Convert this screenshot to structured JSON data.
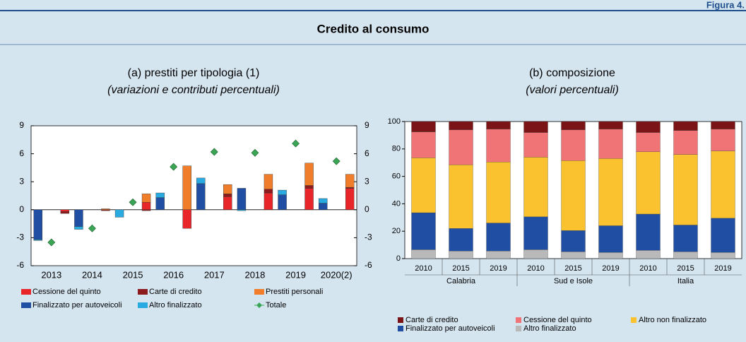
{
  "figure_label": "Figura 4.",
  "title": "Credito al consumo",
  "chart_data": [
    {
      "type": "bar",
      "title": "(a) prestiti per tipologia (1)",
      "subtitle": "(variazioni e contributi percentuali)",
      "categories": [
        "2013",
        "2014",
        "2015",
        "2016",
        "2017",
        "2018",
        "2019",
        "2020(2)"
      ],
      "ylim": [
        -6,
        9
      ],
      "yticks": [
        -6,
        -3,
        0,
        3,
        6,
        9
      ],
      "y2lim": [
        -6,
        9
      ],
      "y2ticks": [
        -6,
        -3,
        0,
        3,
        6,
        9
      ],
      "series": [
        {
          "name": "Cessione del quinto",
          "color": "#e8262a",
          "stack": "right",
          "values": [
            -0.2,
            0,
            0.8,
            -2.0,
            1.4,
            1.8,
            2.3,
            2.3
          ]
        },
        {
          "name": "Carte di credito",
          "color": "#8d1a1c",
          "stack": "right",
          "values": [
            -0.2,
            -0.1,
            -0.1,
            0,
            0.3,
            0.4,
            0.3,
            0.1
          ]
        },
        {
          "name": "Prestiti personali",
          "color": "#f07d2a",
          "stack": "right",
          "values": [
            0,
            0.1,
            0.9,
            4.7,
            1.0,
            1.6,
            2.4,
            1.4
          ]
        },
        {
          "name": "Finalizzato per autoveicoli",
          "color": "#1f4ea3",
          "stack": "left",
          "values": [
            -3.2,
            -1.8,
            0,
            1.3,
            2.8,
            2.3,
            1.6,
            0.7
          ]
        },
        {
          "name": "Altro finalizzato",
          "color": "#29abe2",
          "stack": "left",
          "values": [
            -0.1,
            -0.3,
            -0.8,
            0.5,
            0.6,
            -0.1,
            0.5,
            0.5
          ]
        },
        {
          "name": "Totale",
          "color": "#3aa655",
          "type": "scatter",
          "values": [
            -3.5,
            -2.0,
            0.8,
            4.6,
            6.2,
            6.1,
            7.1,
            5.2
          ]
        }
      ]
    },
    {
      "type": "stacked_bar",
      "title": "(b) composizione",
      "subtitle": "(valori percentuali)",
      "categories": [
        "2010",
        "2015",
        "2019",
        "2010",
        "2015",
        "2019",
        "2010",
        "2015",
        "2019"
      ],
      "groups": [
        "Calabria",
        "Sud e Isole",
        "Italia"
      ],
      "ylim": [
        0,
        100
      ],
      "yticks": [
        0,
        20,
        40,
        60,
        80,
        100
      ],
      "series": [
        {
          "name": "Carte di credito",
          "color": "#7b1416",
          "values": [
            7.5,
            6,
            5.5,
            8,
            6,
            5.5,
            8,
            6.5,
            5.5
          ]
        },
        {
          "name": "Cessione del quinto",
          "color": "#f07475",
          "values": [
            19,
            25.5,
            24,
            18,
            22.5,
            21.5,
            14,
            17.5,
            16
          ]
        },
        {
          "name": "Altro non finalizzato",
          "color": "#f9c22e",
          "values": [
            40,
            46.5,
            44.5,
            43.5,
            51,
            49,
            45.5,
            51.5,
            49
          ]
        },
        {
          "name": "Finalizzato per autoveicoli",
          "color": "#1f4ea3",
          "values": [
            27,
            16.5,
            20.5,
            24,
            15.5,
            19.5,
            26.5,
            19.5,
            25
          ]
        },
        {
          "name": "Altro finalizzato",
          "color": "#b9b9b9",
          "values": [
            6.5,
            5.5,
            5.5,
            6.5,
            5,
            4.5,
            6,
            5,
            4.5
          ]
        }
      ]
    }
  ]
}
